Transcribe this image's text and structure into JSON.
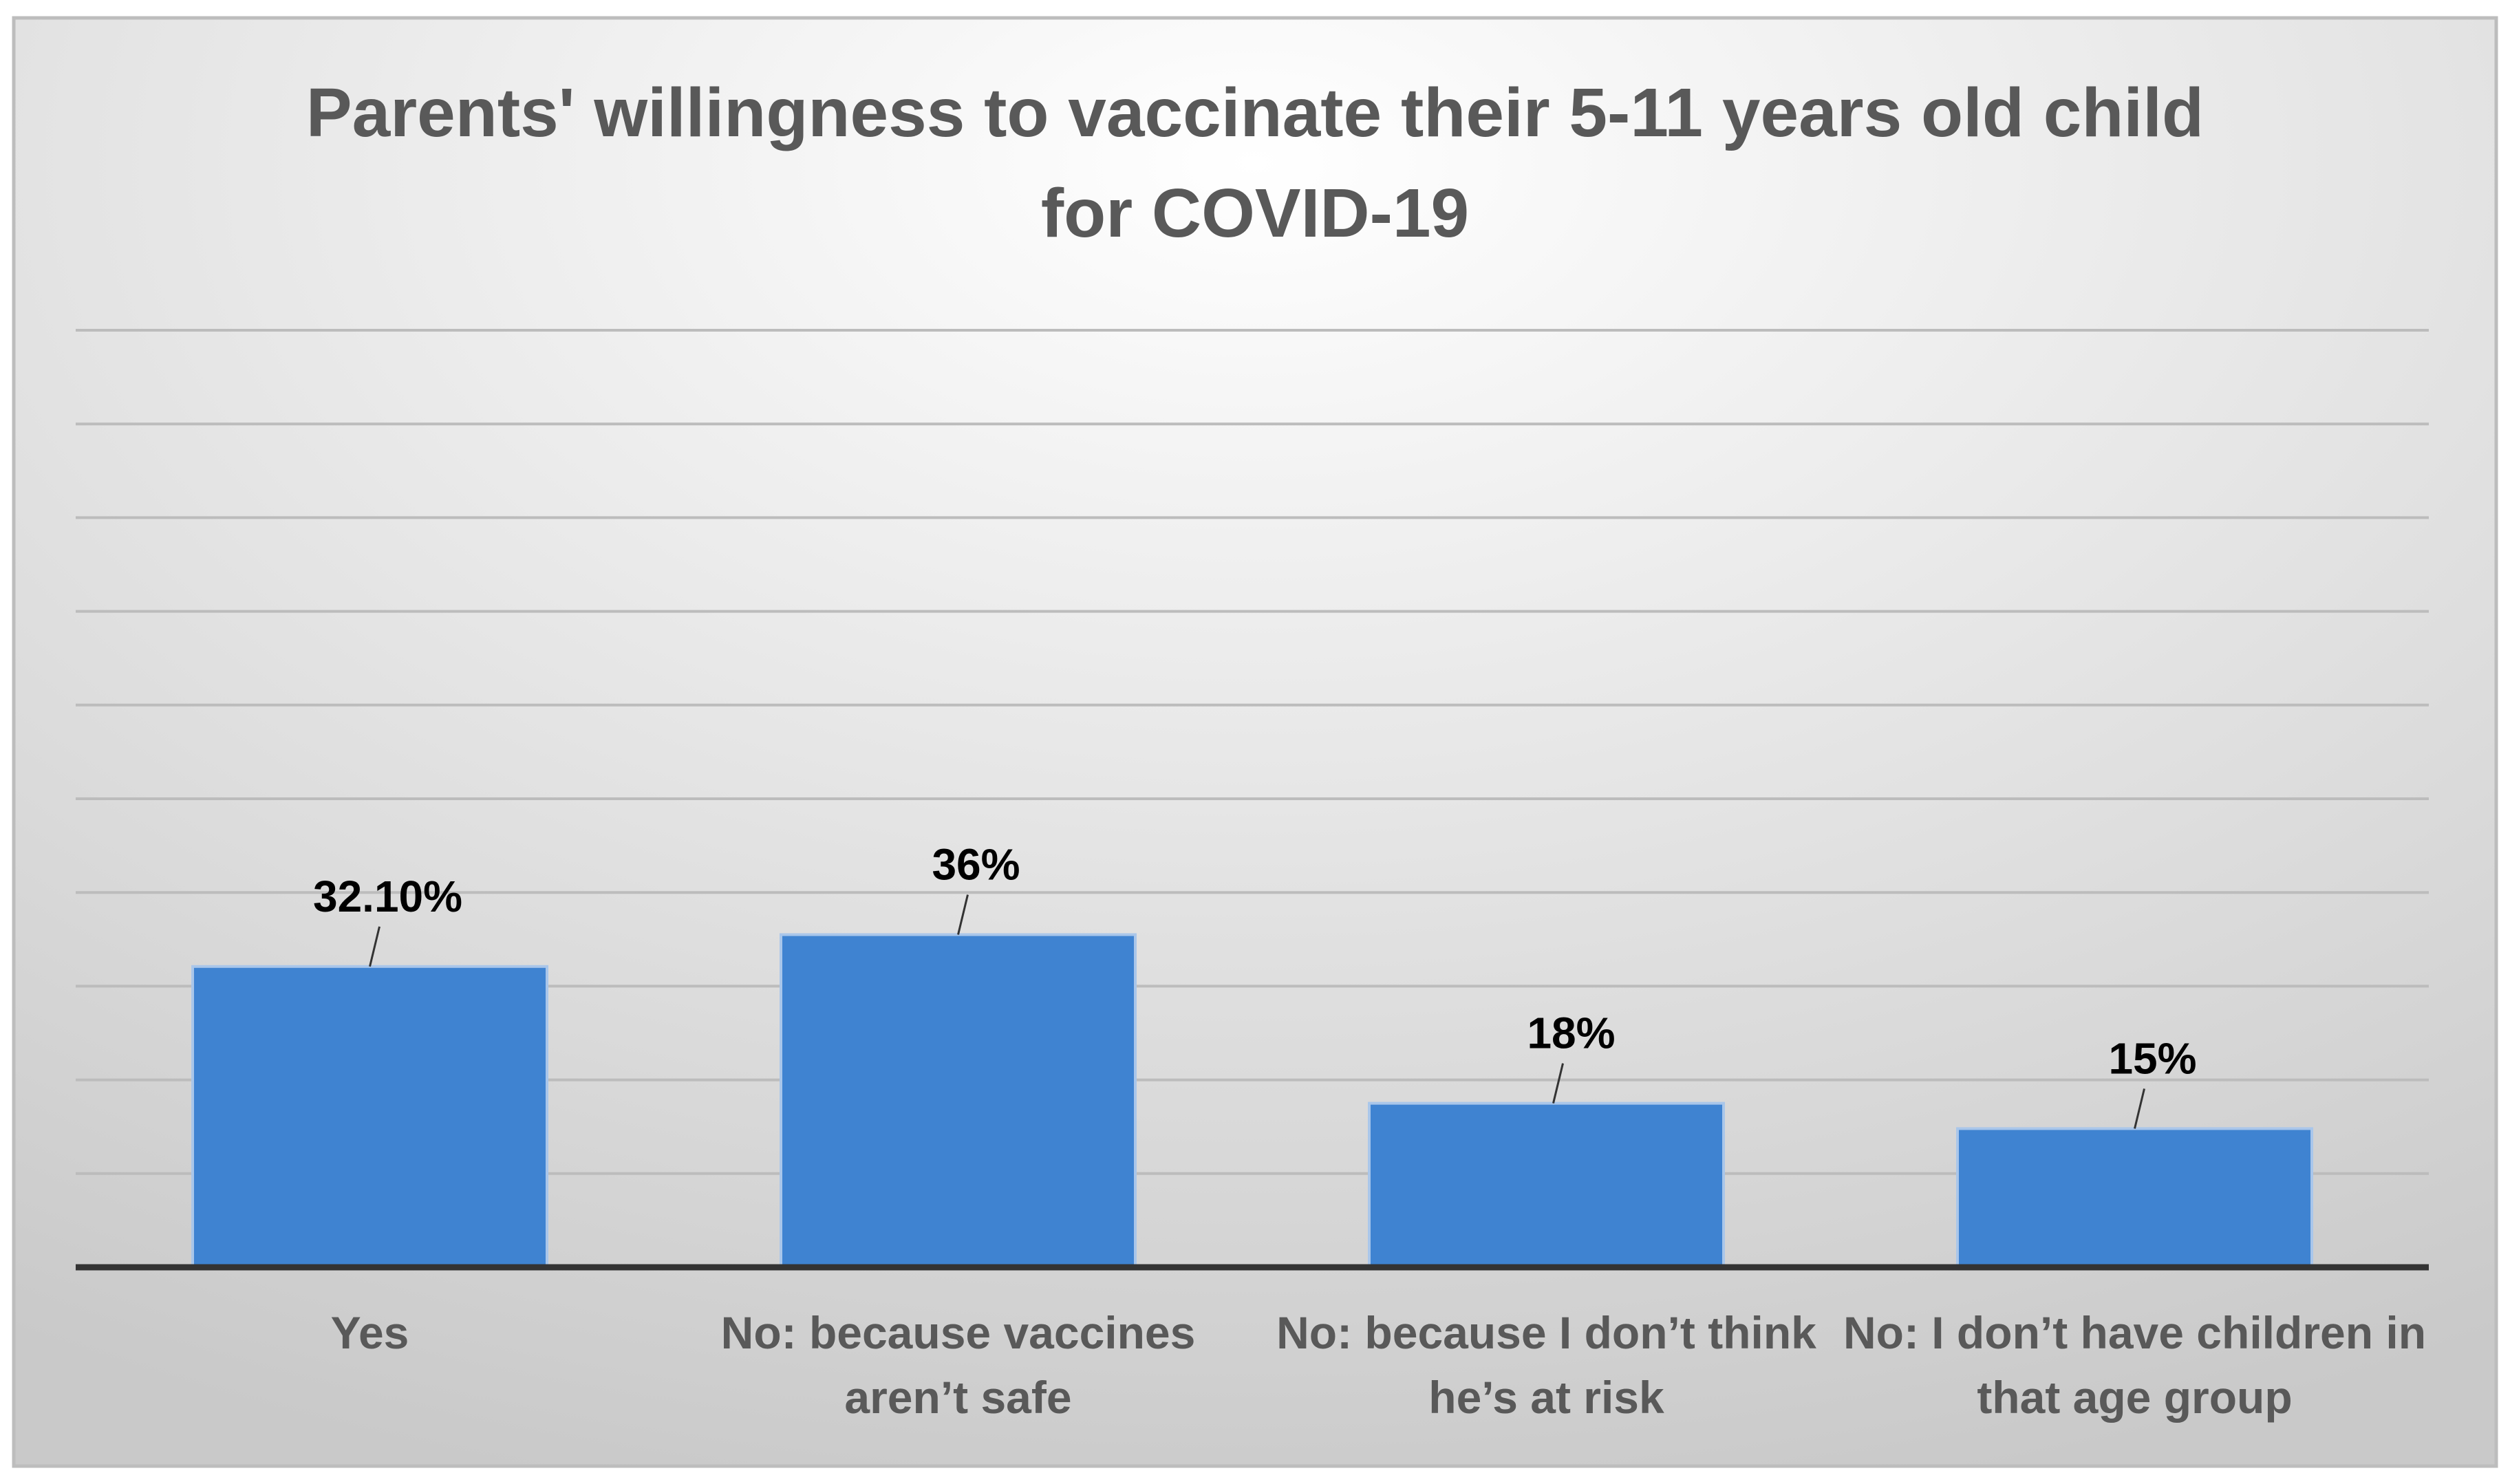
{
  "chart_data": {
    "type": "bar",
    "title_lines": [
      "Parents' willingness to vaccinate their 5-11 years old child",
      "for COVID-19"
    ],
    "categories": [
      [
        "Yes"
      ],
      [
        "No: because vaccines",
        "aren’t safe"
      ],
      [
        "No: because I don’t think",
        "he’s at risk"
      ],
      [
        "No: I don’t have children in",
        "that age group"
      ]
    ],
    "values": [
      32.1,
      35.5,
      17.5,
      14.8
    ],
    "data_labels": [
      "32.10%",
      "36%",
      "18%",
      "15%"
    ],
    "ylim": [
      0,
      100
    ],
    "gridlines": 10,
    "xlabel": "",
    "ylabel": "",
    "colors": {
      "bar": "#3f83d1",
      "bar_edge": "#a9c6ea",
      "grid": "#bcbcbc",
      "axis": "#333333",
      "background_light": "#ffffff",
      "background_dark": "#c9c9c9",
      "border": "#bdbdbd"
    }
  }
}
